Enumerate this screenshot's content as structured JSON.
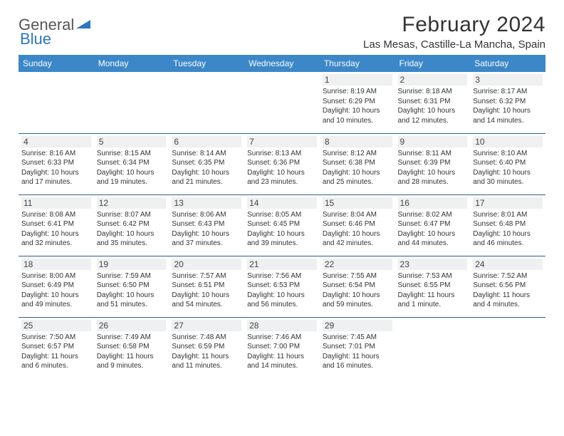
{
  "brand": {
    "part1": "General",
    "part2": "Blue"
  },
  "title": "February 2024",
  "location": "Las Mesas, Castille-La Mancha, Spain",
  "colors": {
    "header_bg": "#3b87c8",
    "header_text": "#ffffff",
    "row_divider": "#2f5f8f",
    "daynum_bg": "#eef0f1",
    "brand_blue": "#2b77c0",
    "text": "#333333",
    "page_bg": "#ffffff"
  },
  "dayHeaders": [
    "Sunday",
    "Monday",
    "Tuesday",
    "Wednesday",
    "Thursday",
    "Friday",
    "Saturday"
  ],
  "weeks": [
    [
      null,
      null,
      null,
      null,
      {
        "n": "1",
        "sr": "8:19 AM",
        "ss": "6:29 PM",
        "dl": "10 hours and 10 minutes."
      },
      {
        "n": "2",
        "sr": "8:18 AM",
        "ss": "6:31 PM",
        "dl": "10 hours and 12 minutes."
      },
      {
        "n": "3",
        "sr": "8:17 AM",
        "ss": "6:32 PM",
        "dl": "10 hours and 14 minutes."
      }
    ],
    [
      {
        "n": "4",
        "sr": "8:16 AM",
        "ss": "6:33 PM",
        "dl": "10 hours and 17 minutes."
      },
      {
        "n": "5",
        "sr": "8:15 AM",
        "ss": "6:34 PM",
        "dl": "10 hours and 19 minutes."
      },
      {
        "n": "6",
        "sr": "8:14 AM",
        "ss": "6:35 PM",
        "dl": "10 hours and 21 minutes."
      },
      {
        "n": "7",
        "sr": "8:13 AM",
        "ss": "6:36 PM",
        "dl": "10 hours and 23 minutes."
      },
      {
        "n": "8",
        "sr": "8:12 AM",
        "ss": "6:38 PM",
        "dl": "10 hours and 25 minutes."
      },
      {
        "n": "9",
        "sr": "8:11 AM",
        "ss": "6:39 PM",
        "dl": "10 hours and 28 minutes."
      },
      {
        "n": "10",
        "sr": "8:10 AM",
        "ss": "6:40 PM",
        "dl": "10 hours and 30 minutes."
      }
    ],
    [
      {
        "n": "11",
        "sr": "8:08 AM",
        "ss": "6:41 PM",
        "dl": "10 hours and 32 minutes."
      },
      {
        "n": "12",
        "sr": "8:07 AM",
        "ss": "6:42 PM",
        "dl": "10 hours and 35 minutes."
      },
      {
        "n": "13",
        "sr": "8:06 AM",
        "ss": "6:43 PM",
        "dl": "10 hours and 37 minutes."
      },
      {
        "n": "14",
        "sr": "8:05 AM",
        "ss": "6:45 PM",
        "dl": "10 hours and 39 minutes."
      },
      {
        "n": "15",
        "sr": "8:04 AM",
        "ss": "6:46 PM",
        "dl": "10 hours and 42 minutes."
      },
      {
        "n": "16",
        "sr": "8:02 AM",
        "ss": "6:47 PM",
        "dl": "10 hours and 44 minutes."
      },
      {
        "n": "17",
        "sr": "8:01 AM",
        "ss": "6:48 PM",
        "dl": "10 hours and 46 minutes."
      }
    ],
    [
      {
        "n": "18",
        "sr": "8:00 AM",
        "ss": "6:49 PM",
        "dl": "10 hours and 49 minutes."
      },
      {
        "n": "19",
        "sr": "7:59 AM",
        "ss": "6:50 PM",
        "dl": "10 hours and 51 minutes."
      },
      {
        "n": "20",
        "sr": "7:57 AM",
        "ss": "6:51 PM",
        "dl": "10 hours and 54 minutes."
      },
      {
        "n": "21",
        "sr": "7:56 AM",
        "ss": "6:53 PM",
        "dl": "10 hours and 56 minutes."
      },
      {
        "n": "22",
        "sr": "7:55 AM",
        "ss": "6:54 PM",
        "dl": "10 hours and 59 minutes."
      },
      {
        "n": "23",
        "sr": "7:53 AM",
        "ss": "6:55 PM",
        "dl": "11 hours and 1 minute."
      },
      {
        "n": "24",
        "sr": "7:52 AM",
        "ss": "6:56 PM",
        "dl": "11 hours and 4 minutes."
      }
    ],
    [
      {
        "n": "25",
        "sr": "7:50 AM",
        "ss": "6:57 PM",
        "dl": "11 hours and 6 minutes."
      },
      {
        "n": "26",
        "sr": "7:49 AM",
        "ss": "6:58 PM",
        "dl": "11 hours and 9 minutes."
      },
      {
        "n": "27",
        "sr": "7:48 AM",
        "ss": "6:59 PM",
        "dl": "11 hours and 11 minutes."
      },
      {
        "n": "28",
        "sr": "7:46 AM",
        "ss": "7:00 PM",
        "dl": "11 hours and 14 minutes."
      },
      {
        "n": "29",
        "sr": "7:45 AM",
        "ss": "7:01 PM",
        "dl": "11 hours and 16 minutes."
      },
      null,
      null
    ]
  ],
  "labels": {
    "sunrise": "Sunrise:",
    "sunset": "Sunset:",
    "daylight": "Daylight:"
  }
}
